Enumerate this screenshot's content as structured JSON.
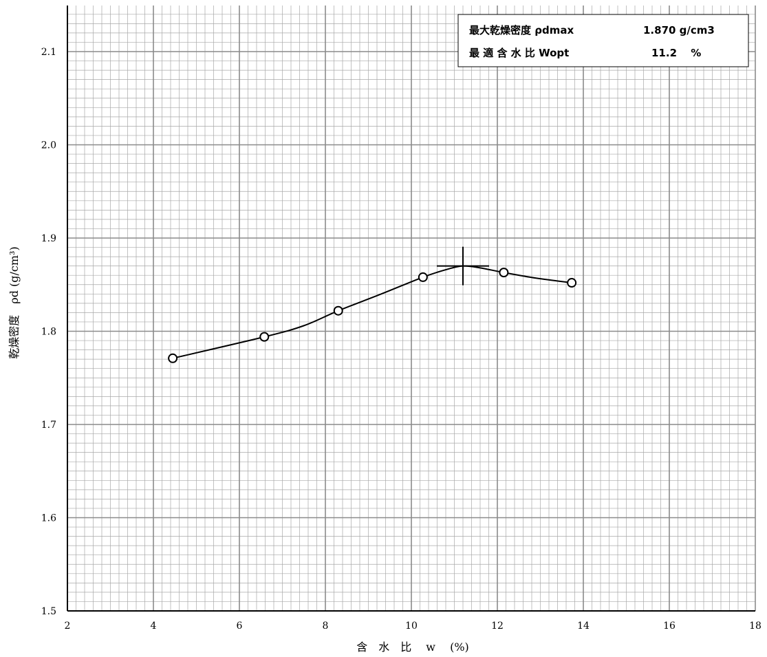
{
  "chart_data": {
    "type": "scatter",
    "xlabel": "含　水　比　 w 　(%)",
    "ylabel": "乾燥密度　ρd (g/cm³)",
    "xlim": [
      2,
      18
    ],
    "ylim": [
      1.5,
      2.15
    ],
    "x_ticks": [
      "2",
      "4",
      "6",
      "8",
      "10",
      "12",
      "14",
      "16",
      "18"
    ],
    "y_ticks": [
      "1.5",
      "1.6",
      "1.7",
      "1.8",
      "1.9",
      "2.0",
      "2.1"
    ],
    "grid": true,
    "series": [
      {
        "x": [
          4.45,
          6.58,
          8.3,
          10.27,
          12.15,
          13.73
        ],
        "y": [
          1.771,
          1.794,
          1.822,
          1.858,
          1.863,
          1.852
        ]
      }
    ],
    "curve": {
      "x": [
        4.45,
        6.58,
        7.5,
        8.3,
        9.3,
        10.27,
        10.8,
        11.2,
        11.6,
        12.15,
        12.9,
        13.73
      ],
      "y": [
        1.771,
        1.794,
        1.806,
        1.822,
        1.84,
        1.858,
        1.866,
        1.87,
        1.868,
        1.863,
        1.857,
        1.852
      ]
    },
    "peak": {
      "x": 11.2,
      "y": 1.87
    },
    "legend": {
      "position": "top-right",
      "rows": [
        {
          "label": "最大乾燥密度 ρdmax",
          "value": "1.870 g/cm3"
        },
        {
          "label": "最 適 含 水 比 Wopt",
          "value": "11.2　 %"
        }
      ]
    }
  }
}
